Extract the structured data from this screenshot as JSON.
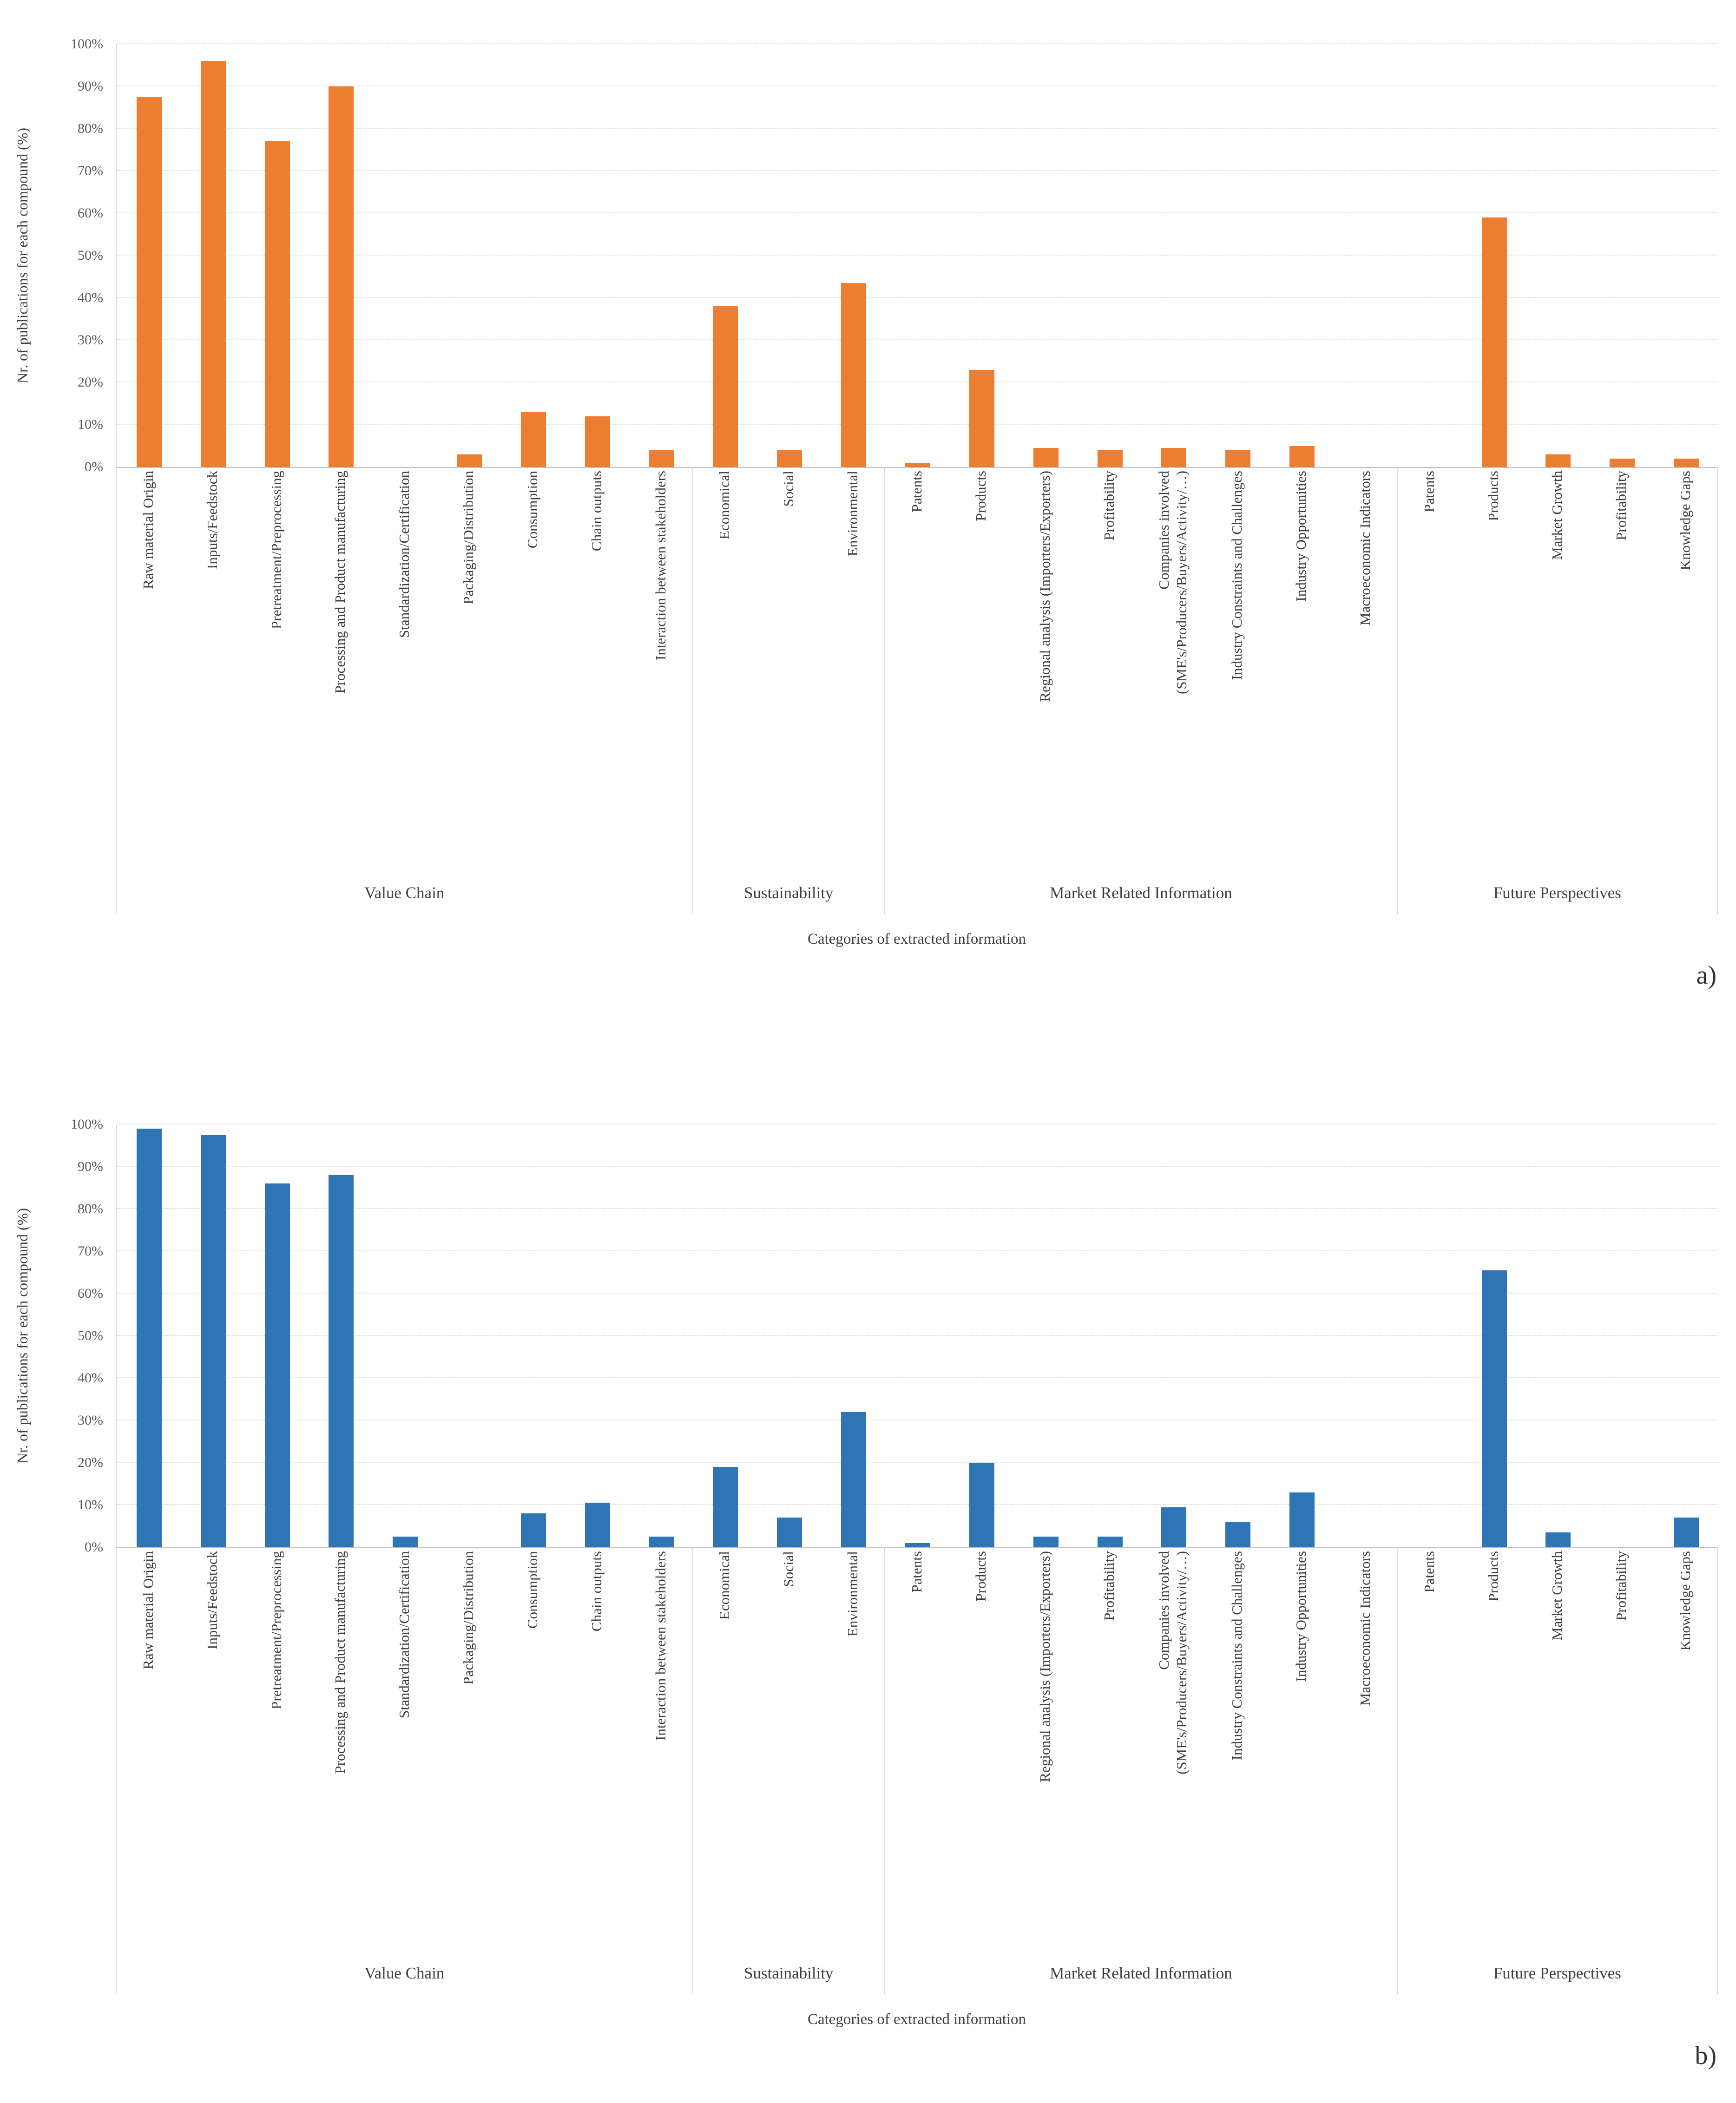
{
  "figure": {
    "background": "#FFFFFF"
  },
  "chart_data": [
    {
      "id": "a",
      "type": "bar",
      "panel_label": "a)",
      "bar_color": "#ED7D31",
      "ylabel": "Nr. of publications for each compound (%)",
      "xlabel": "Categories of extracted information",
      "ylim": [
        0,
        100
      ],
      "y_ticks": [
        "0%",
        "10%",
        "20%",
        "30%",
        "40%",
        "50%",
        "60%",
        "70%",
        "80%",
        "90%",
        "100%"
      ],
      "grid": "horizontal-dotted",
      "legend": "none",
      "groups": [
        {
          "label": "Value Chain",
          "categories": [
            "Raw material Origin",
            "Inputs/Feedstock",
            "Pretreatment/Preprocessing",
            "Processing and Product manufacturing",
            "Standardization/Certification",
            "Packaging/Distribution",
            "Consumption",
            "Chain outputs",
            "Interaction between stakeholders"
          ],
          "values": [
            87.5,
            96,
            77,
            90,
            0,
            3,
            13,
            12,
            4
          ]
        },
        {
          "label": "Sustainability",
          "categories": [
            "Economical",
            "Social",
            "Environmental"
          ],
          "values": [
            38,
            4,
            43.5
          ]
        },
        {
          "label": "Market Related Information",
          "categories": [
            "Patents",
            "Products",
            "Regional analysis (Importers/Exporters)",
            "Profitability",
            "Companies involved\n(SME's/Producers/Buyers/Activity/…)",
            "Industry Constraints and Challenges",
            "Industry Opportunities",
            "Macroeconomic Indicators"
          ],
          "values": [
            1,
            23,
            4.5,
            4,
            4.5,
            4,
            5,
            0
          ]
        },
        {
          "label": "Future Perspectives",
          "categories": [
            "Patents",
            "Products",
            "Market Growth",
            "Profitability",
            "Knowledge Gaps"
          ],
          "values": [
            0,
            59,
            3,
            2,
            2
          ]
        }
      ]
    },
    {
      "id": "b",
      "type": "bar",
      "panel_label": "b)",
      "bar_color": "#2E75B6",
      "ylabel": "Nr. of publications for each compound (%)",
      "xlabel": "Categories of extracted information",
      "ylim": [
        0,
        100
      ],
      "y_ticks": [
        "0%",
        "10%",
        "20%",
        "30%",
        "40%",
        "50%",
        "60%",
        "70%",
        "80%",
        "90%",
        "100%"
      ],
      "grid": "horizontal-dotted",
      "legend": "none",
      "groups": [
        {
          "label": "Value Chain",
          "categories": [
            "Raw material Origin",
            "Inputs/Feedstock",
            "Pretreatment/Preprocessing",
            "Processing and Product manufacturing",
            "Standardization/Certification",
            "Packaging/Distribution",
            "Consumption",
            "Chain outputs",
            "Interaction between stakeholders"
          ],
          "values": [
            99,
            97.5,
            86,
            88,
            2.5,
            0,
            8,
            10.5,
            2.5
          ]
        },
        {
          "label": "Sustainability",
          "categories": [
            "Economical",
            "Social",
            "Environmental"
          ],
          "values": [
            19,
            7,
            32
          ]
        },
        {
          "label": "Market Related Information",
          "categories": [
            "Patents",
            "Products",
            "Regional analysis (Importers/Exporters)",
            "Profitability",
            "Companies involved\n(SME's/Producers/Buyers/Activity/…)",
            "Industry Constraints and Challenges",
            "Industry Opportunities",
            "Macroeconomic Indicators"
          ],
          "values": [
            1,
            20,
            2.5,
            2.5,
            9.5,
            6,
            13,
            0
          ]
        },
        {
          "label": "Future Perspectives",
          "categories": [
            "Patents",
            "Products",
            "Market Growth",
            "Profitability",
            "Knowledge Gaps"
          ],
          "values": [
            0,
            65.5,
            3.5,
            0,
            7
          ]
        }
      ]
    }
  ]
}
